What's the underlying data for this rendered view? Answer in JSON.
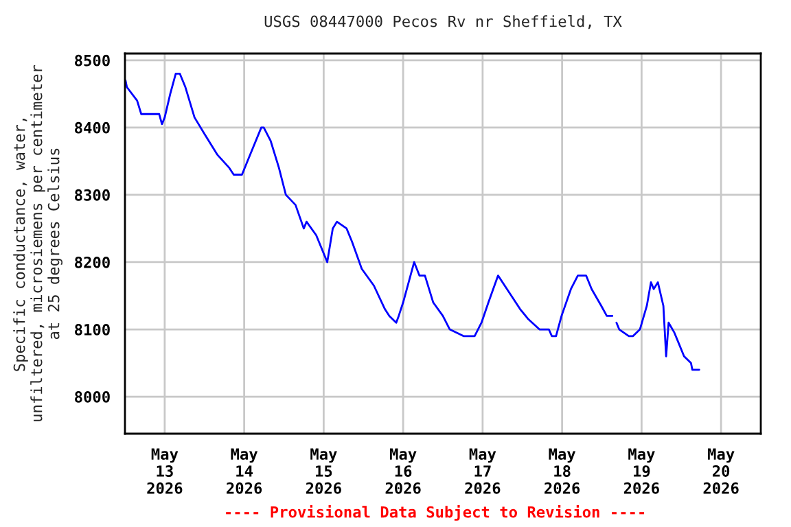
{
  "chart_data": {
    "type": "line",
    "title": "USGS 08447000 Pecos Rv nr Sheffield, TX",
    "ylabel": "Specific conductance, water,\nunfiltered, microsiemens per centimeter\nat 25 degrees Celsius",
    "annotations": [
      "---- Provisional Data Subject to Revision ----"
    ],
    "x": [
      "2026-05-12T12:10",
      "2026-05-12T12:35",
      "2026-05-12T15:40",
      "2026-05-12T16:55",
      "2026-05-12T22:20",
      "2026-05-12T23:10",
      "2026-05-13T00:00",
      "2026-05-13T01:40",
      "2026-05-13T03:20",
      "2026-05-13T04:35",
      "2026-05-13T06:15",
      "2026-05-13T09:00",
      "2026-05-13T12:05",
      "2026-05-13T15:50",
      "2026-05-13T19:30",
      "2026-05-13T20:50",
      "2026-05-13T23:20",
      "2026-05-14T01:50",
      "2026-05-14T05:10",
      "2026-05-14T05:55",
      "2026-05-14T08:00",
      "2026-05-14T10:30",
      "2026-05-14T12:35",
      "2026-05-14T15:30",
      "2026-05-14T18:00",
      "2026-05-14T18:50",
      "2026-05-14T21:45",
      "2026-05-15T01:05",
      "2026-05-15T02:45",
      "2026-05-15T04:00",
      "2026-05-15T06:55",
      "2026-05-15T08:35",
      "2026-05-15T11:30",
      "2026-05-15T15:10",
      "2026-05-15T18:30",
      "2026-05-15T19:50",
      "2026-05-15T21:55",
      "2026-05-15T22:40",
      "2026-05-16T00:00",
      "2026-05-16T03:20",
      "2026-05-16T04:55",
      "2026-05-16T06:35",
      "2026-05-16T09:05",
      "2026-05-16T12:00",
      "2026-05-16T14:05",
      "2026-05-16T18:15",
      "2026-05-16T21:35",
      "2026-05-16T23:40",
      "2026-05-17T01:45",
      "2026-05-17T04:40",
      "2026-05-17T08:00",
      "2026-05-17T11:20",
      "2026-05-17T13:50",
      "2026-05-17T17:10",
      "2026-05-17T20:00",
      "2026-05-17T20:55",
      "2026-05-17T22:10",
      "2026-05-17T23:50",
      "2026-05-18T02:40",
      "2026-05-18T04:45",
      "2026-05-18T07:15",
      "2026-05-18T08:55",
      "2026-05-18T11:50",
      "2026-05-18T13:30",
      "2026-05-18T15:10",
      "2026-05-18T15:50",
      "2026-05-18T16:25",
      "2026-05-18T17:15",
      "2026-05-18T20:10",
      "2026-05-18T21:25",
      "2026-05-18T23:30",
      "2026-05-19T01:35",
      "2026-05-19T02:50",
      "2026-05-19T03:40",
      "2026-05-19T04:55",
      "2026-05-19T06:35",
      "2026-05-19T07:25",
      "2026-05-19T08:10",
      "2026-05-19T09:55",
      "2026-05-19T11:10",
      "2026-05-19T12:50",
      "2026-05-19T14:55",
      "2026-05-19T15:20",
      "2026-05-19T17:25"
    ],
    "series": [
      {
        "color": "#0000ff",
        "values": [
          8470,
          8460,
          8440,
          8420,
          8420,
          8405,
          8415,
          8450,
          8480,
          8480,
          8460,
          8415,
          8390,
          8360,
          8340,
          8330,
          8330,
          8360,
          8400,
          8400,
          8380,
          8340,
          8300,
          8285,
          8250,
          8260,
          8240,
          8200,
          8250,
          8260,
          8250,
          8230,
          8190,
          8165,
          8130,
          8120,
          8110,
          8120,
          8140,
          8200,
          8180,
          8180,
          8140,
          8120,
          8100,
          8090,
          8090,
          8110,
          8140,
          8180,
          8155,
          8130,
          8115,
          8100,
          8100,
          8090,
          8090,
          8120,
          8160,
          8180,
          8180,
          8160,
          8135,
          8120,
          8120,
          null,
          8110,
          8100,
          8090,
          8090,
          8100,
          8135,
          8170,
          8160,
          8170,
          8135,
          8060,
          8110,
          8095,
          8080,
          8060,
          8050,
          8040,
          8040
        ]
      }
    ],
    "xlim": [
      "2026-05-12T12:00",
      "2026-05-20T12:00"
    ],
    "xticks": [
      {
        "value": "2026-05-13",
        "label": "May\n13\n2026"
      },
      {
        "value": "2026-05-14",
        "label": "May\n14\n2026"
      },
      {
        "value": "2026-05-15",
        "label": "May\n15\n2026"
      },
      {
        "value": "2026-05-16",
        "label": "May\n16\n2026"
      },
      {
        "value": "2026-05-17",
        "label": "May\n17\n2026"
      },
      {
        "value": "2026-05-18",
        "label": "May\n18\n2026"
      },
      {
        "value": "2026-05-19",
        "label": "May\n19\n2026"
      },
      {
        "value": "2026-05-20",
        "label": "May\n20\n2026"
      }
    ],
    "ylim": [
      7945,
      8510
    ],
    "yticks": [
      8000,
      8100,
      8200,
      8300,
      8400,
      8500
    ],
    "grid": true
  }
}
